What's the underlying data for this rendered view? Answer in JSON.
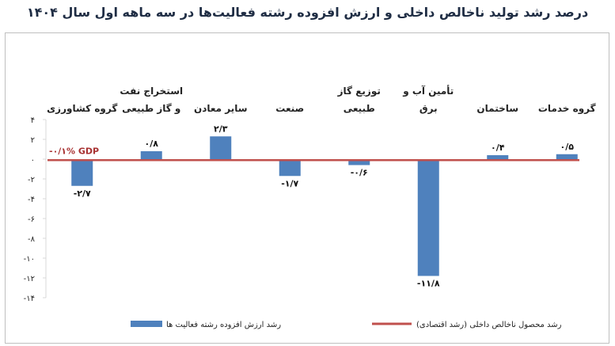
{
  "chart_data": {
    "type": "bar",
    "title": "درصد رشد تولید ناخالص داخلی و ارزش افزوده رشته فعالیت‌ها در سه ماهه اول سال ۱۴۰۴",
    "categories": [
      [
        "گروه کشاورزی"
      ],
      [
        "استخراج نفت",
        "و گاز طبیعی"
      ],
      [
        "سایر معادن"
      ],
      [
        "صنعت"
      ],
      [
        "توزیع گاز",
        "طبیعی"
      ],
      [
        "تأمین آب و",
        "برق"
      ],
      [
        "ساختمان"
      ],
      [
        "گروه خدمات"
      ]
    ],
    "series": [
      {
        "name": "رشد ارزش افزوده رشته فعالیت ها",
        "values": [
          -2.7,
          0.8,
          2.3,
          -1.7,
          -0.6,
          -11.8,
          0.4,
          0.5
        ],
        "labels": [
          "-۲/۷",
          "۰/۸",
          "۲/۳",
          "-۱/۷",
          "-۰/۶",
          "-۱۱/۸",
          "۰/۴",
          "۰/۵"
        ],
        "color": "#4f81bd"
      },
      {
        "name": "رشد محصول ناخالص داخلی (رشد اقتصادی)",
        "value": -0.1,
        "label": "-۰/۱%  GDP",
        "color": "#c0504d"
      }
    ],
    "ylim": [
      -14,
      4
    ],
    "yticks": [
      4,
      2,
      0,
      -2,
      -4,
      -6,
      -8,
      -10,
      -12,
      -14
    ],
    "ytick_labels": [
      "۴",
      "۲",
      "۰",
      "-۲",
      "-۴",
      "-۶",
      "-۸",
      "-۱۰",
      "-۱۲",
      "-۱۴"
    ],
    "grid": false,
    "legend_position": "bottom"
  }
}
